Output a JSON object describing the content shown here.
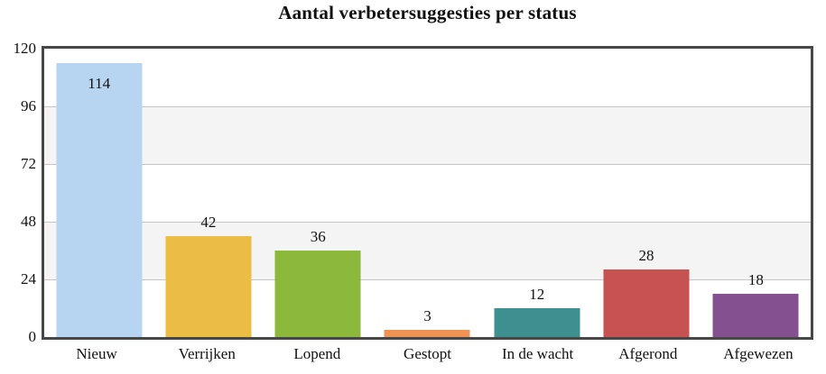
{
  "title": "Aantal verbetersuggesties per status",
  "chart_data": {
    "type": "bar",
    "title": "Aantal verbetersuggesties per status",
    "categories": [
      "Nieuw",
      "Verrijken",
      "Lopend",
      "Gestopt",
      "In de wacht",
      "Afgerond",
      "Afgewezen"
    ],
    "values": [
      114,
      42,
      36,
      3,
      12,
      28,
      18
    ],
    "bar_colors": [
      "#b7d5f1",
      "#ecbd45",
      "#8cb93c",
      "#ef9355",
      "#3e8f90",
      "#c65251",
      "#85508f"
    ],
    "xlabel": "",
    "ylabel": "",
    "ylim": [
      0,
      120
    ],
    "yticks": [
      0,
      24,
      48,
      72,
      96,
      120
    ],
    "grid": "horizontal gridlines with alternating white/gray bands",
    "band_fill": "#f4f4f4",
    "gridline_color": "#c6c6c6",
    "plot_border_color": "#474747",
    "legend": "none",
    "data_labels": "shown above bars (inside bar for tallest)"
  }
}
